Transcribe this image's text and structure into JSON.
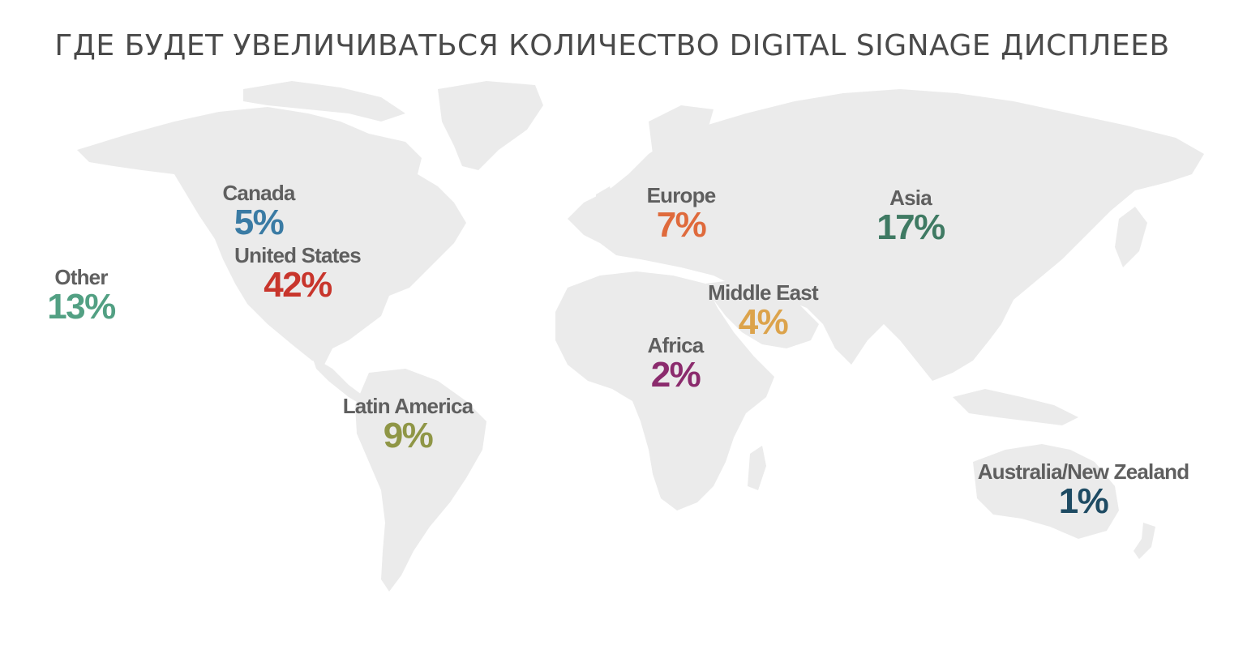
{
  "title": "ГДЕ БУДЕТ УВЕЛИЧИВАТЬСЯ КОЛИЧЕСТВО DIGITAL SIGNAGE ДИСПЛЕЕВ",
  "land_color": "#ebebeb",
  "regions": [
    {
      "name": "Canada",
      "value": "5%",
      "color": "#3a7ba4"
    },
    {
      "name": "United States",
      "value": "42%",
      "color": "#c8352c"
    },
    {
      "name": "Other",
      "value": "13%",
      "color": "#52a083"
    },
    {
      "name": "Europe",
      "value": "7%",
      "color": "#df6a3c"
    },
    {
      "name": "Asia",
      "value": "17%",
      "color": "#3f7a63"
    },
    {
      "name": "Middle East",
      "value": "4%",
      "color": "#dca34b"
    },
    {
      "name": "Africa",
      "value": "2%",
      "color": "#8b2b6d"
    },
    {
      "name": "Latin America",
      "value": "9%",
      "color": "#8f9646"
    },
    {
      "name": "Australia/New Zealand",
      "value": "1%",
      "color": "#1e4b63"
    }
  ]
}
